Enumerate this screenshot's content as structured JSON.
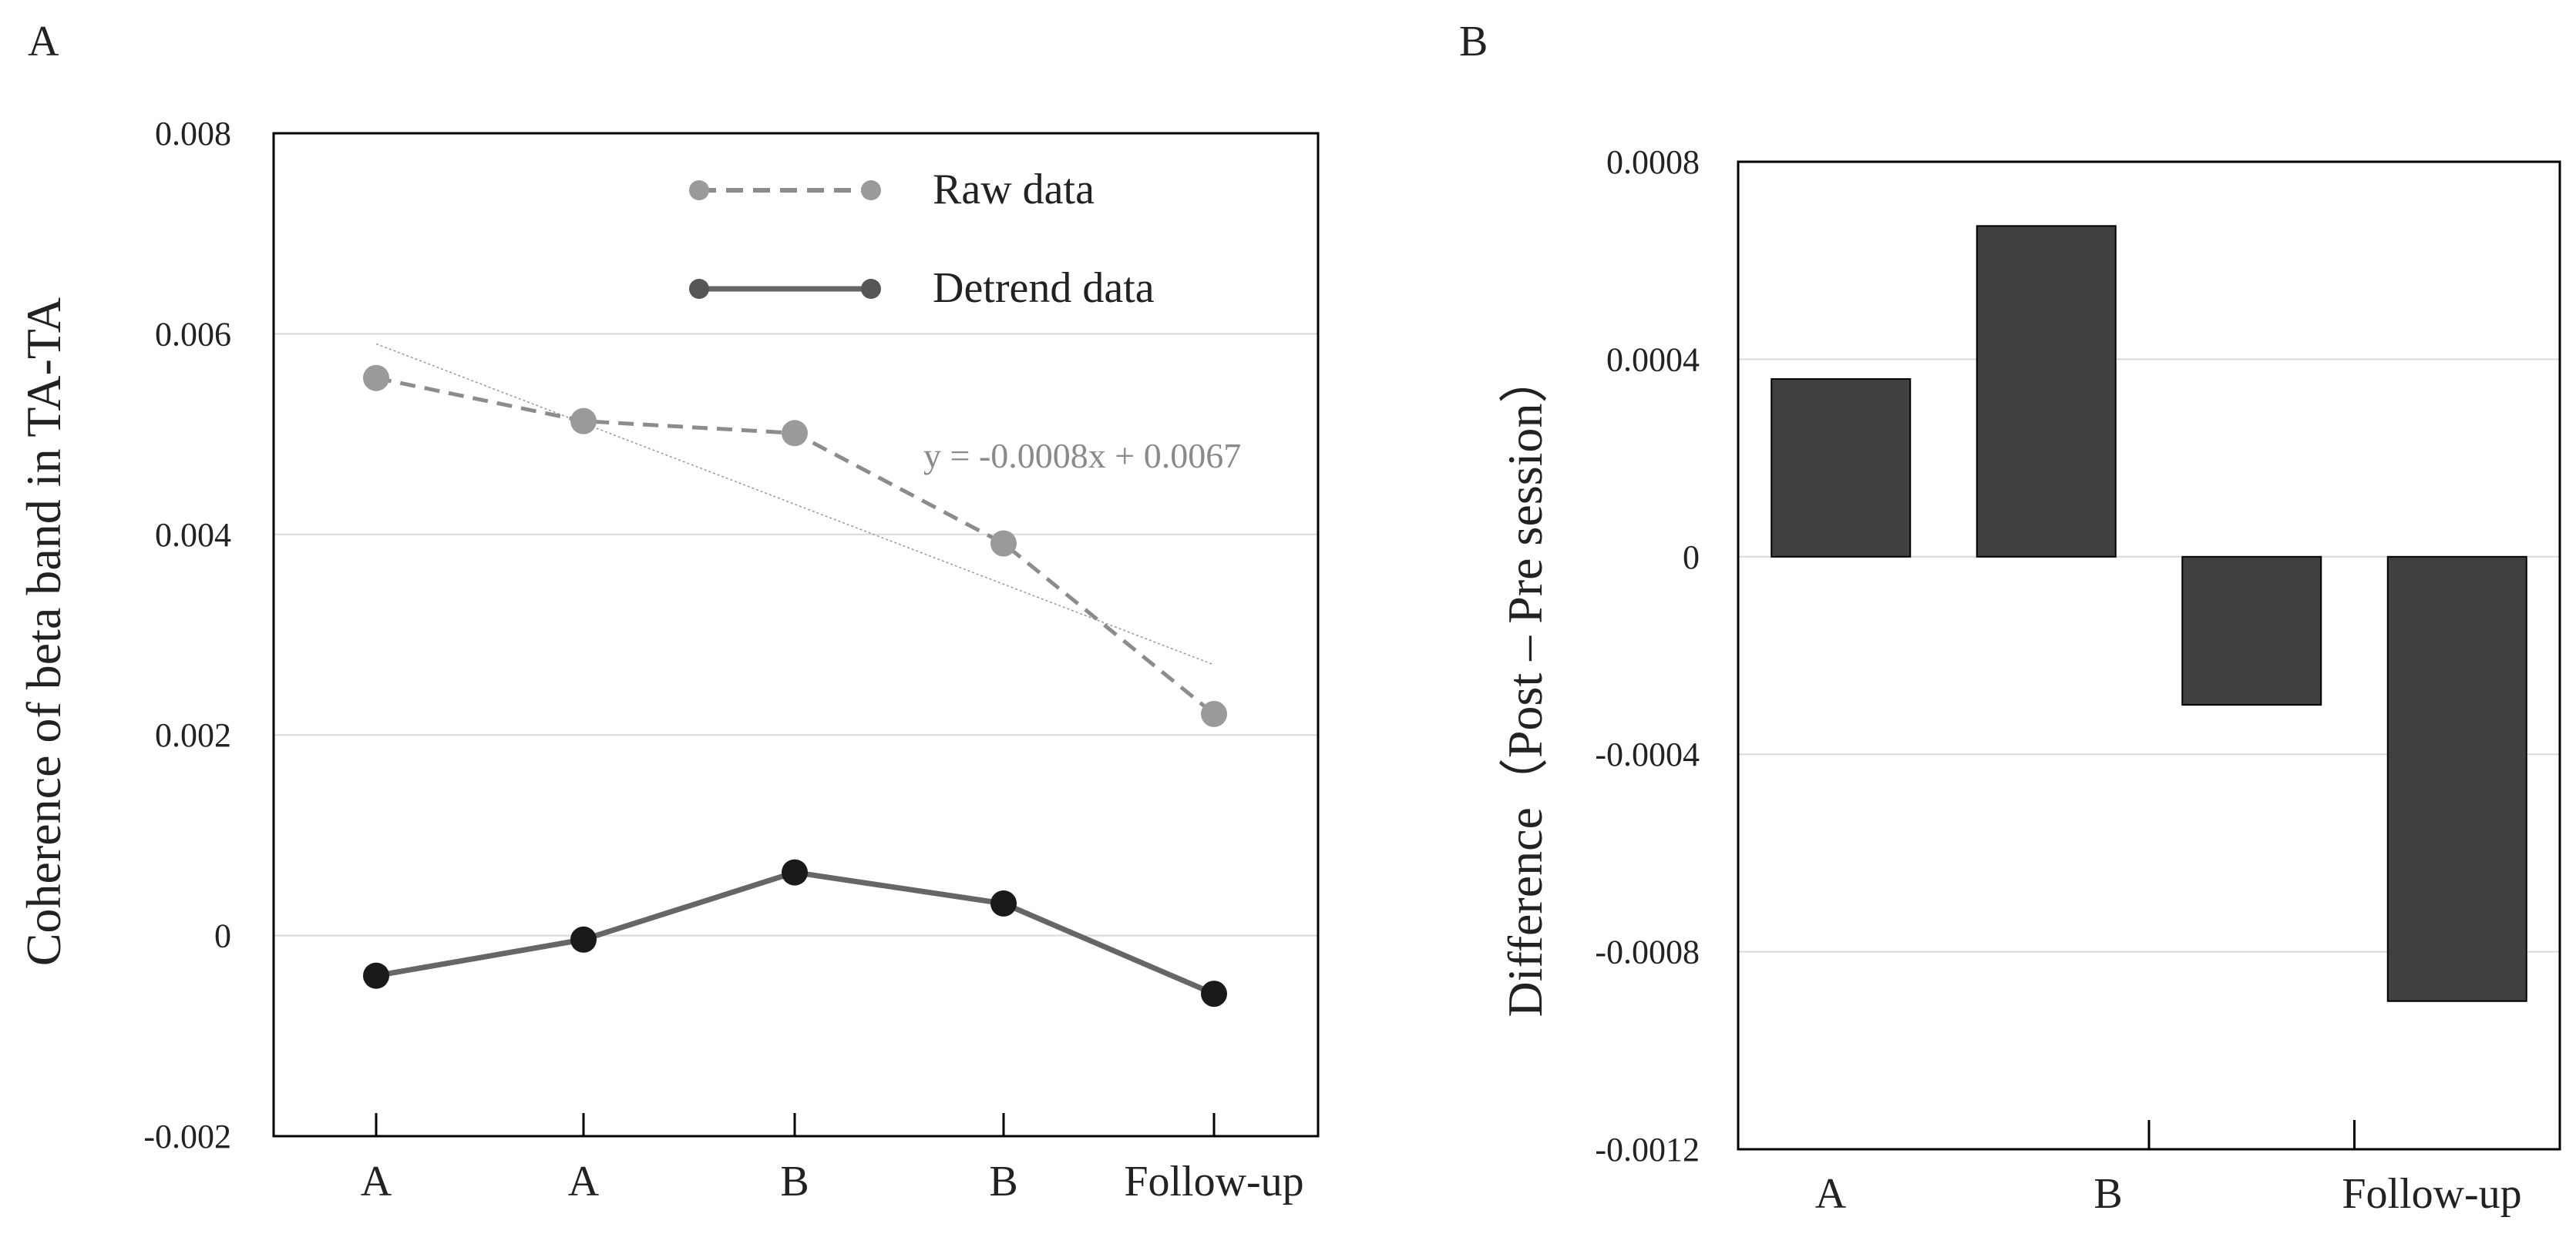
{
  "chart_data": [
    {
      "panel_label": "A",
      "type": "line",
      "categories": [
        "A",
        "A",
        "B",
        "B",
        "Follow-up"
      ],
      "series": [
        {
          "name": "Raw data",
          "style": "dashed",
          "color": "#8c8c8c",
          "marker_color": "#9a9a9a",
          "values": [
            0.00556,
            0.00513,
            0.00501,
            0.00391,
            0.00221
          ]
        },
        {
          "name": "Detrend data",
          "style": "solid",
          "color": "#666666",
          "marker_color": "#1a1a1a",
          "values": [
            -0.0004,
            -4e-05,
            0.00063,
            0.00032,
            -0.00058
          ]
        }
      ],
      "trendline": {
        "label": "y = -0.0008x + 0.0067",
        "slope": -0.0008,
        "intercept": 0.0067,
        "color": "#999999"
      },
      "ylabel": "Coherence of beta band in TA-TA",
      "xlabel": "",
      "ylim": [
        -0.002,
        0.008
      ],
      "yticks": [
        -0.002,
        0,
        0.002,
        0.004,
        0.006,
        0.008
      ],
      "ytick_labels": [
        "-0.002",
        "0",
        "0.002",
        "0.004",
        "0.006",
        "0.008"
      ],
      "grid": true,
      "legend_position": "top-right"
    },
    {
      "panel_label": "B",
      "type": "bar",
      "bar_color": "#404040",
      "values": [
        0.00036,
        0.00067,
        -0.0003,
        -0.0009
      ],
      "category_labels": [
        "A",
        "B",
        "Follow-up"
      ],
      "category_groups": [
        [
          0,
          1
        ],
        [
          2,
          2
        ],
        [
          3,
          3
        ]
      ],
      "ylabel": "Difference（Post – Pre session）",
      "xlabel": "",
      "ylim": [
        -0.0012,
        0.0008
      ],
      "yticks": [
        -0.0012,
        -0.0008,
        -0.0004,
        0,
        0.0004,
        0.0008
      ],
      "ytick_labels": [
        "-0.0012",
        "-0.0008",
        "-0.0004",
        "0",
        "0.0004",
        "0.0008"
      ],
      "grid": true
    }
  ]
}
